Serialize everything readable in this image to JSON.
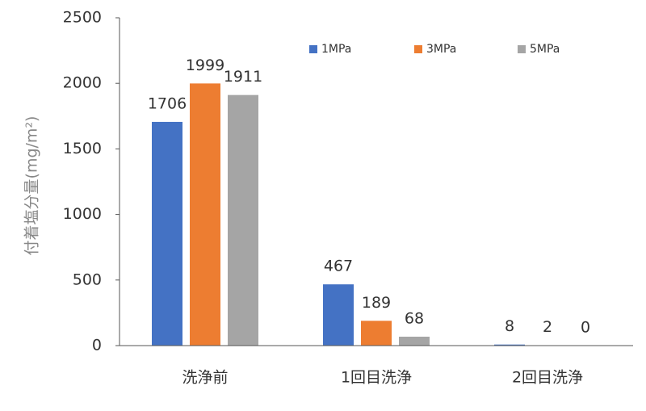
{
  "chart_data": {
    "type": "bar",
    "y_label": "付着塩分量(mg/m²)",
    "categories": [
      "洗浄前",
      "1回目洗浄",
      "2回目洗浄"
    ],
    "series": [
      {
        "name": "1MPa",
        "color": "#4472c4",
        "values": [
          1706,
          467,
          8
        ]
      },
      {
        "name": "3MPa",
        "color": "#ed7d31",
        "values": [
          1999,
          189,
          2
        ]
      },
      {
        "name": "5MPa",
        "color": "#a5a5a5",
        "values": [
          1911,
          68,
          0
        ]
      }
    ],
    "ylim": [
      0,
      2500
    ],
    "yticks": [
      0,
      500,
      1000,
      1500,
      2000,
      2500
    ],
    "legend": "top-right"
  }
}
